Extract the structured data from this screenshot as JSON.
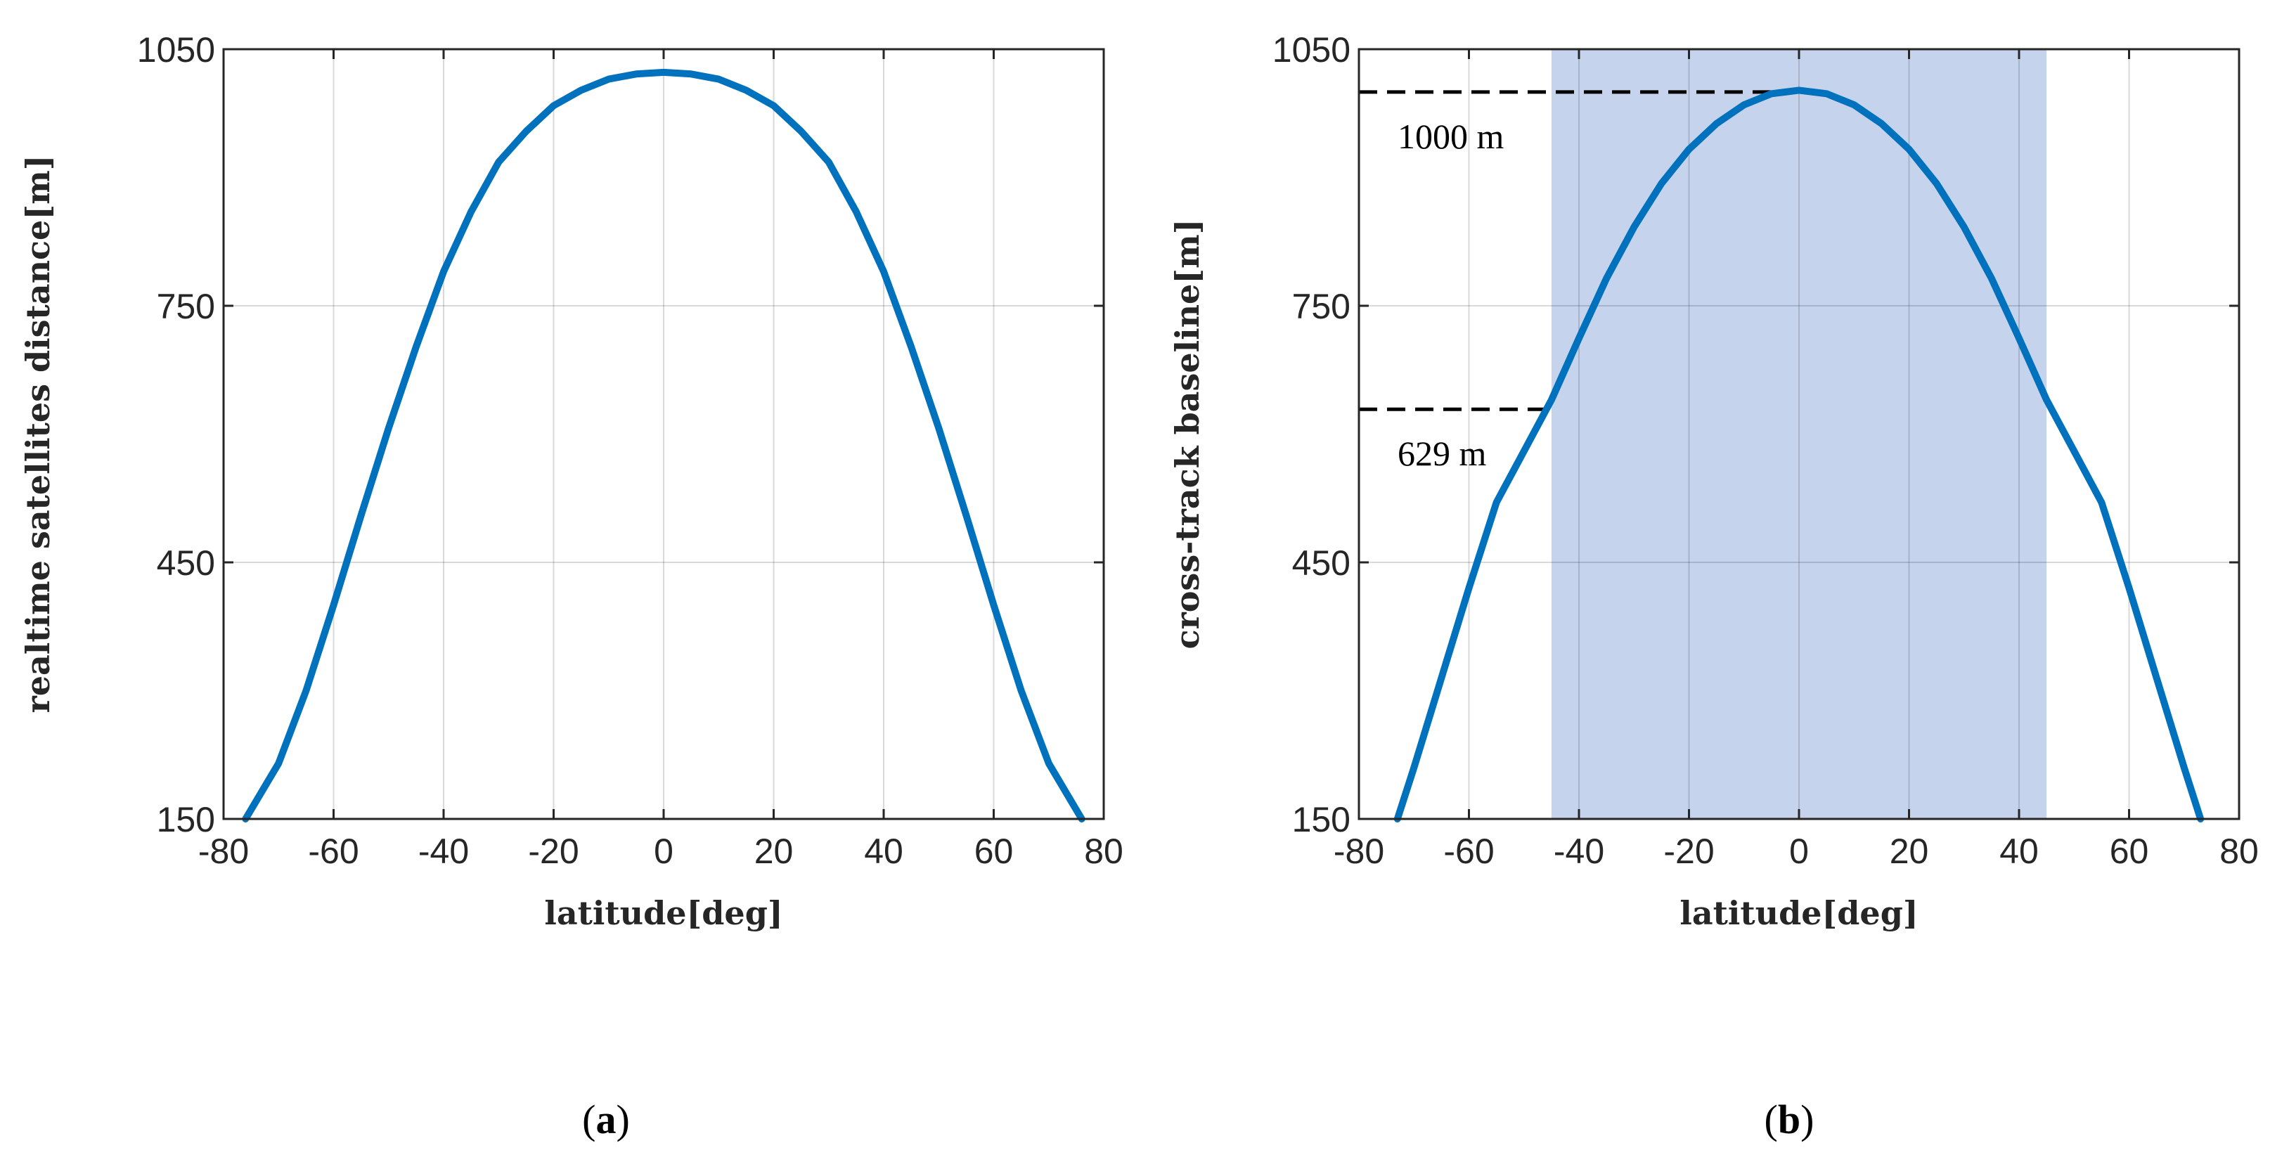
{
  "chart_data": [
    {
      "type": "line",
      "panel_label": "(a)",
      "panel_letter": "a",
      "xlabel": "latitude[deg]",
      "ylabel": "realtime satellites distance[m]",
      "xlim": [
        -80,
        80
      ],
      "ylim": [
        150,
        1050
      ],
      "xticks": [
        -80,
        -60,
        -40,
        -20,
        0,
        20,
        40,
        60,
        80
      ],
      "yticks": [
        150,
        450,
        750,
        1050
      ],
      "grid": true,
      "series": [
        {
          "name": "distance",
          "color": "#0072BD",
          "x": [
            -76,
            -70,
            -65,
            -60,
            -55,
            -50,
            -45,
            -40,
            -35,
            -30,
            -25,
            -20,
            -15,
            -10,
            -5,
            0,
            5,
            10,
            15,
            20,
            25,
            30,
            35,
            40,
            45,
            50,
            55,
            60,
            65,
            70,
            76
          ],
          "y": [
            150,
            215,
            300,
            400,
            505,
            607,
            702,
            790,
            860,
            918,
            954,
            984,
            1002,
            1015,
            1021,
            1023,
            1021,
            1015,
            1002,
            984,
            954,
            918,
            860,
            790,
            702,
            607,
            505,
            400,
            300,
            215,
            150
          ]
        }
      ]
    },
    {
      "type": "line",
      "panel_label": "(b)",
      "panel_letter": "b",
      "xlabel": "latitude[deg]",
      "ylabel": "cross-track baseline[m]",
      "xlim": [
        -80,
        80
      ],
      "ylim": [
        150,
        1050
      ],
      "xticks": [
        -80,
        -60,
        -40,
        -20,
        0,
        20,
        40,
        60,
        80
      ],
      "yticks": [
        150,
        450,
        750,
        1050
      ],
      "grid": true,
      "shaded_region": {
        "x": [
          -45,
          45
        ],
        "color": "#C6D3ED"
      },
      "reference_lines": [
        {
          "y": 1000,
          "x_end": 0,
          "label": "1000 m"
        },
        {
          "y": 629,
          "x_end": -45,
          "label": "629 m"
        }
      ],
      "series": [
        {
          "name": "baseline",
          "color": "#0072BD",
          "x": [
            -73,
            -70,
            -65,
            -60,
            -55,
            -50,
            -45,
            -40,
            -35,
            -30,
            -25,
            -20,
            -15,
            -10,
            -5,
            0,
            5,
            10,
            15,
            20,
            25,
            30,
            35,
            40,
            45,
            50,
            55,
            60,
            65,
            70,
            73
          ],
          "y": [
            150,
            210,
            315,
            420,
            520,
            580,
            640,
            712,
            782,
            842,
            893,
            933,
            963,
            985,
            998,
            1002,
            998,
            985,
            963,
            933,
            893,
            842,
            782,
            712,
            640,
            580,
            520,
            420,
            315,
            210,
            150
          ]
        }
      ]
    }
  ]
}
